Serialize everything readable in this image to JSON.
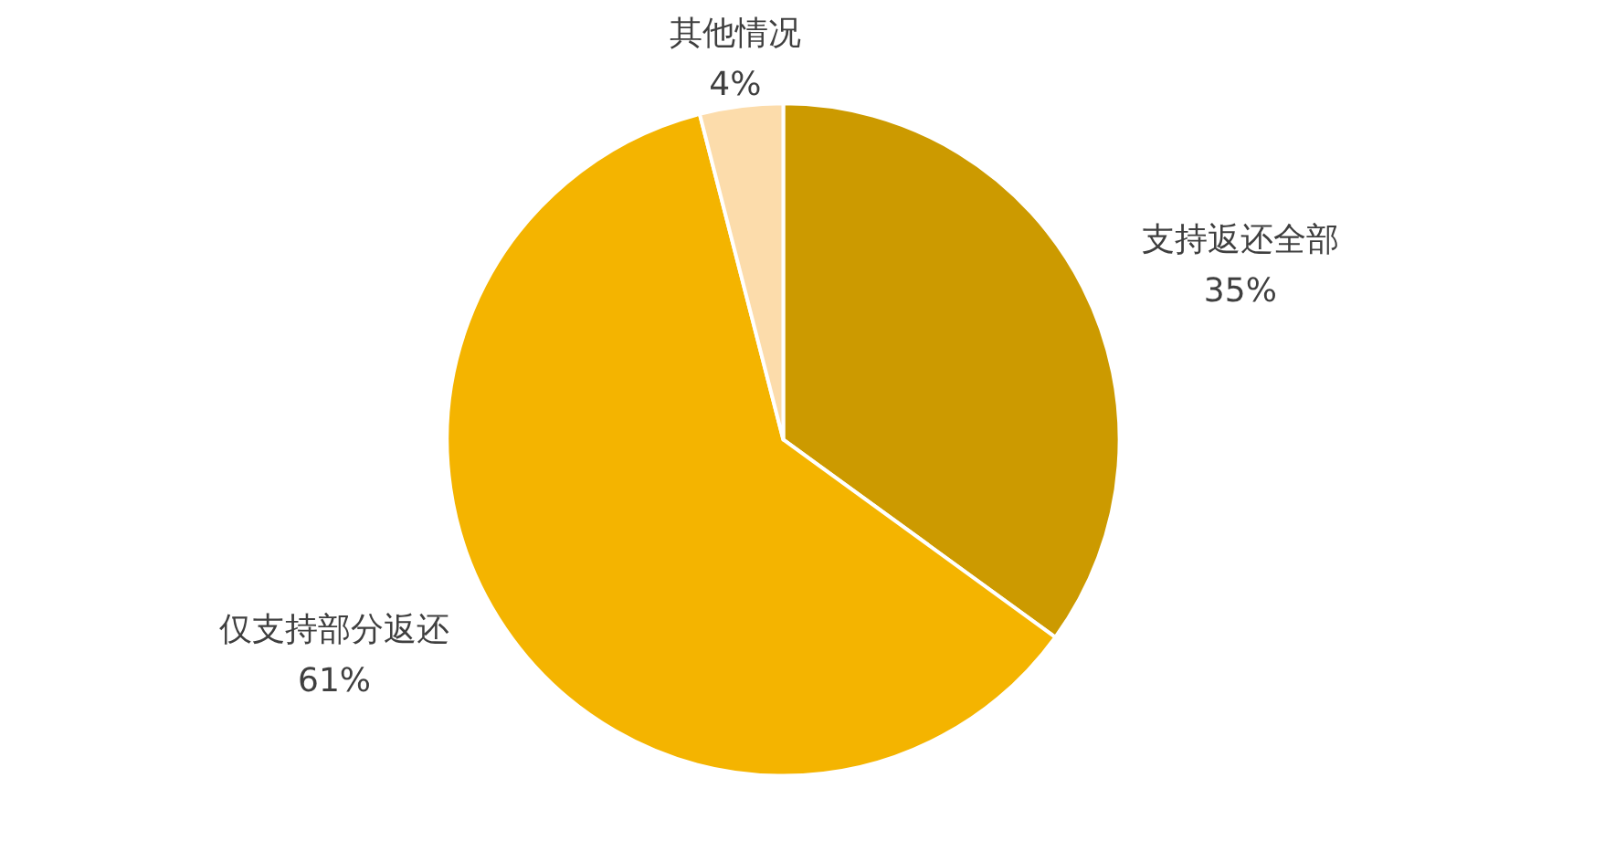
{
  "chart_data": {
    "type": "pie",
    "categories": [
      "支持返还全部",
      "仅支持部分返还",
      "其他情况"
    ],
    "values": [
      35,
      61,
      4
    ],
    "value_labels": [
      "35%",
      "61%",
      "4%"
    ],
    "colors": [
      "#cc9a00",
      "#f4b400",
      "#fcdcab"
    ],
    "legend": false
  }
}
